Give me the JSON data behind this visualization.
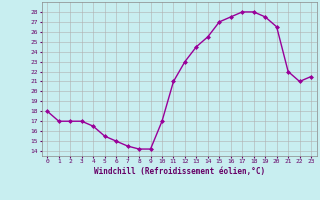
{
  "x": [
    0,
    1,
    2,
    3,
    4,
    5,
    6,
    7,
    8,
    9,
    10,
    11,
    12,
    13,
    14,
    15,
    16,
    17,
    18,
    19,
    20,
    21,
    22,
    23
  ],
  "y": [
    18,
    17,
    17,
    17,
    16.5,
    15.5,
    15,
    14.5,
    14.2,
    14.2,
    17,
    21,
    23,
    24.5,
    25.5,
    27,
    27.5,
    28,
    28,
    27.5,
    26.5,
    22,
    21,
    21.5
  ],
  "line_color": "#990099",
  "marker_color": "#990099",
  "bg_color": "#c8eef0",
  "grid_color": "#b0b0b0",
  "xlabel": "Windchill (Refroidissement éolien,°C)",
  "xlabel_color": "#660066",
  "tick_color": "#660066",
  "yticks": [
    14,
    15,
    16,
    17,
    18,
    19,
    20,
    21,
    22,
    23,
    24,
    25,
    26,
    27,
    28
  ],
  "ylim": [
    13.5,
    29
  ],
  "xlim": [
    -0.5,
    23.5
  ]
}
